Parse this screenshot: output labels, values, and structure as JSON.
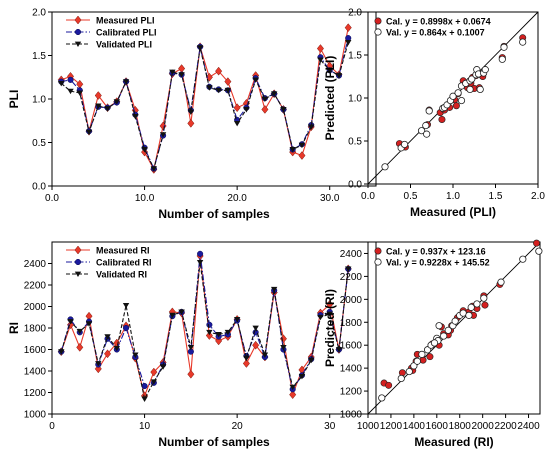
{
  "chart_data": [
    {
      "type": "line",
      "xlabel": "Number of samples",
      "ylabel": "PLI",
      "xlim": [
        0,
        35
      ],
      "ylim": [
        0,
        2.0
      ],
      "xticks": [
        0,
        10,
        20,
        30
      ],
      "yticks": [
        0.0,
        0.5,
        1.0,
        1.5,
        2.0
      ],
      "x": [
        1,
        2,
        3,
        4,
        5,
        6,
        7,
        8,
        9,
        10,
        11,
        12,
        13,
        14,
        15,
        16,
        17,
        18,
        19,
        20,
        21,
        22,
        23,
        24,
        25,
        26,
        27,
        28,
        29,
        30,
        31,
        32
      ],
      "legend_position": "top-left",
      "series": [
        {
          "name": "Measured PLI",
          "color": "#e8392a",
          "marker": "diamond",
          "dash": "solid",
          "values": [
            1.22,
            1.26,
            1.17,
            0.63,
            1.04,
            0.9,
            0.97,
            1.2,
            0.87,
            0.39,
            0.19,
            0.69,
            1.29,
            1.35,
            0.72,
            1.6,
            1.25,
            1.32,
            1.2,
            0.9,
            0.95,
            1.27,
            0.88,
            1.06,
            0.88,
            0.39,
            0.35,
            0.68,
            1.58,
            1.38,
            1.28,
            1.82
          ]
        },
        {
          "name": "Calibrated PLI",
          "color": "#1a1a9e",
          "marker": "circle",
          "dash": "dashdot",
          "values": [
            1.2,
            1.22,
            1.1,
            0.63,
            0.91,
            0.9,
            0.96,
            1.2,
            0.82,
            0.44,
            0.2,
            0.58,
            1.3,
            1.28,
            0.87,
            1.6,
            1.14,
            1.11,
            1.1,
            0.76,
            0.9,
            1.24,
            1.01,
            1.06,
            0.88,
            0.42,
            0.48,
            0.7,
            1.48,
            1.33,
            1.27,
            1.7
          ]
        },
        {
          "name": "Validated PLI",
          "color": "#111111",
          "marker": "triangle-down",
          "dash": "dashed",
          "values": [
            1.18,
            1.09,
            1.07,
            0.62,
            0.92,
            0.89,
            0.97,
            1.2,
            0.8,
            0.42,
            0.2,
            0.59,
            1.31,
            1.28,
            0.85,
            1.59,
            1.13,
            1.1,
            1.1,
            0.72,
            0.88,
            1.22,
            1.0,
            1.06,
            0.88,
            0.42,
            0.47,
            0.68,
            1.45,
            1.33,
            1.27,
            1.65
          ]
        }
      ]
    },
    {
      "type": "scatter",
      "xlabel": "Measured (PLI)",
      "ylabel": "Predicted (PLI)",
      "xlim": [
        0.0,
        2.0
      ],
      "ylim": [
        0.0,
        2.0
      ],
      "xticks": [
        0.0,
        0.5,
        1.0,
        1.5,
        2.0
      ],
      "yticks": [
        0.0,
        0.5,
        1.0,
        1.5,
        2.0
      ],
      "identity_line": true,
      "legend_position": "top-left",
      "series": [
        {
          "name": "Cal. y = 0.8998x + 0.0674",
          "color": "#d42020",
          "marker": "filled-circle",
          "points": [
            [
              0.37,
              0.47
            ],
            [
              0.44,
              0.43
            ],
            [
              0.7,
              0.69
            ],
            [
              0.85,
              0.83
            ],
            [
              0.87,
              0.75
            ],
            [
              0.9,
              0.86
            ],
            [
              0.96,
              0.89
            ],
            [
              1.02,
              0.98
            ],
            [
              1.06,
              1.05
            ],
            [
              1.04,
              0.91
            ],
            [
              1.17,
              1.12
            ],
            [
              1.21,
              1.17
            ],
            [
              1.23,
              1.24
            ],
            [
              1.25,
              1.11
            ],
            [
              1.27,
              1.26
            ],
            [
              1.29,
              1.3
            ],
            [
              1.33,
              1.27
            ],
            [
              1.35,
              1.25
            ],
            [
              1.31,
              1.12
            ],
            [
              1.58,
              1.47
            ],
            [
              1.6,
              1.6
            ],
            [
              1.82,
              1.7
            ],
            [
              0.72,
              0.86
            ],
            [
              1.2,
              1.2
            ],
            [
              1.12,
              1.2
            ]
          ]
        },
        {
          "name": "Val. y = 0.864x + 0.1007",
          "color": "#ffffff",
          "marker": "open-circle",
          "points": [
            [
              0.2,
              0.2
            ],
            [
              0.39,
              0.42
            ],
            [
              0.43,
              0.46
            ],
            [
              0.63,
              0.62
            ],
            [
              0.68,
              0.68
            ],
            [
              0.69,
              0.58
            ],
            [
              0.72,
              0.85
            ],
            [
              0.88,
              0.88
            ],
            [
              0.9,
              0.89
            ],
            [
              0.93,
              0.92
            ],
            [
              0.97,
              0.97
            ],
            [
              1.0,
              1.02
            ],
            [
              1.06,
              1.06
            ],
            [
              1.1,
              1.14
            ],
            [
              1.15,
              1.17
            ],
            [
              1.2,
              1.2
            ],
            [
              1.22,
              1.22
            ],
            [
              1.27,
              1.27
            ],
            [
              1.28,
              1.33
            ],
            [
              1.3,
              1.28
            ],
            [
              1.32,
              1.1
            ],
            [
              1.36,
              1.29
            ],
            [
              1.38,
              1.33
            ],
            [
              1.58,
              1.45
            ],
            [
              1.6,
              1.59
            ],
            [
              1.82,
              1.65
            ],
            [
              1.2,
              1.1
            ],
            [
              1.1,
              0.97
            ]
          ]
        }
      ]
    },
    {
      "type": "line",
      "xlabel": "Number of samples",
      "ylabel": "RI",
      "xlim": [
        0,
        35
      ],
      "ylim": [
        1000,
        2600
      ],
      "xticks": [
        0,
        10,
        20,
        30
      ],
      "yticks": [
        1000,
        1200,
        1400,
        1600,
        1800,
        2000,
        2200,
        2400
      ],
      "x": [
        1,
        2,
        3,
        4,
        5,
        6,
        7,
        8,
        9,
        10,
        11,
        12,
        13,
        14,
        15,
        16,
        17,
        18,
        19,
        20,
        21,
        22,
        23,
        24,
        25,
        26,
        27,
        28,
        29,
        30,
        31,
        32
      ],
      "legend_position": "top-left",
      "series": [
        {
          "name": "Measured RI",
          "color": "#e8392a",
          "marker": "diamond",
          "dash": "solid",
          "values": [
            1580,
            1830,
            1620,
            1910,
            1420,
            1560,
            1660,
            1820,
            1520,
            1170,
            1390,
            1480,
            1950,
            1940,
            1370,
            2470,
            1730,
            1680,
            1720,
            1880,
            1470,
            1640,
            1530,
            2130,
            1700,
            1180,
            1410,
            1530,
            1940,
            2020,
            1600,
            2350
          ]
        },
        {
          "name": "Calibrated RI",
          "color": "#1a1a9e",
          "marker": "circle",
          "dash": "dashdot",
          "values": [
            1580,
            1880,
            1760,
            1860,
            1460,
            1700,
            1600,
            1800,
            1530,
            1260,
            1290,
            1460,
            1910,
            1950,
            1580,
            2490,
            1830,
            1720,
            1740,
            1870,
            1540,
            1760,
            1530,
            2150,
            1600,
            1230,
            1360,
            1510,
            1920,
            1950,
            1600,
            2350
          ]
        },
        {
          "name": "Validated RI",
          "color": "#111111",
          "marker": "triangle-down",
          "dash": "dashed",
          "values": [
            1580,
            1860,
            1770,
            1840,
            1470,
            1720,
            1610,
            2010,
            1550,
            1140,
            1300,
            1440,
            1920,
            1950,
            1620,
            2410,
            1760,
            1740,
            1760,
            1880,
            1520,
            1800,
            1550,
            2160,
            1620,
            1250,
            1350,
            1500,
            1900,
            1930,
            1600,
            2350
          ]
        }
      ]
    },
    {
      "type": "scatter",
      "xlabel": "Measured (RI)",
      "ylabel": "Predicted (RI)",
      "xlim": [
        1000,
        2500
      ],
      "ylim": [
        1000,
        2500
      ],
      "xticks": [
        1000,
        1200,
        1400,
        1600,
        1800,
        2000,
        2200,
        2400
      ],
      "yticks": [
        1000,
        1200,
        1400,
        1600,
        1800,
        2000,
        2200,
        2400
      ],
      "identity_line": true,
      "legend_position": "top-left",
      "series": [
        {
          "name": "Cal. y = 0.937x + 123.16",
          "color": "#d42020",
          "marker": "filled-circle",
          "points": [
            [
              1140,
              1270
            ],
            [
              1180,
              1250
            ],
            [
              1300,
              1360
            ],
            [
              1380,
              1400
            ],
            [
              1420,
              1460
            ],
            [
              1430,
              1520
            ],
            [
              1480,
              1470
            ],
            [
              1520,
              1560
            ],
            [
              1540,
              1500
            ],
            [
              1560,
              1610
            ],
            [
              1600,
              1640
            ],
            [
              1620,
              1600
            ],
            [
              1640,
              1760
            ],
            [
              1660,
              1700
            ],
            [
              1720,
              1730
            ],
            [
              1730,
              1770
            ],
            [
              1780,
              1840
            ],
            [
              1830,
              1900
            ],
            [
              1880,
              1890
            ],
            [
              1910,
              1940
            ],
            [
              1920,
              1860
            ],
            [
              1950,
              1920
            ],
            [
              2010,
              2030
            ],
            [
              2020,
              1950
            ],
            [
              2150,
              2130
            ],
            [
              2470,
              2490
            ],
            [
              1700,
              1690
            ],
            [
              1390,
              1380
            ]
          ]
        },
        {
          "name": "Val. y = 0.9228x + 145.52",
          "color": "#ffffff",
          "marker": "open-circle",
          "points": [
            [
              1120,
              1140
            ],
            [
              1290,
              1310
            ],
            [
              1360,
              1370
            ],
            [
              1400,
              1420
            ],
            [
              1430,
              1460
            ],
            [
              1470,
              1520
            ],
            [
              1520,
              1560
            ],
            [
              1550,
              1600
            ],
            [
              1600,
              1660
            ],
            [
              1610,
              1640
            ],
            [
              1620,
              1770
            ],
            [
              1660,
              1680
            ],
            [
              1700,
              1730
            ],
            [
              1740,
              1770
            ],
            [
              1760,
              1810
            ],
            [
              1800,
              1860
            ],
            [
              1830,
              1880
            ],
            [
              1880,
              1860
            ],
            [
              1900,
              1930
            ],
            [
              1950,
              1960
            ],
            [
              2010,
              2010
            ],
            [
              2160,
              2150
            ],
            [
              2350,
              2350
            ],
            [
              2490,
              2420
            ],
            [
              1580,
              1620
            ]
          ]
        }
      ]
    }
  ]
}
